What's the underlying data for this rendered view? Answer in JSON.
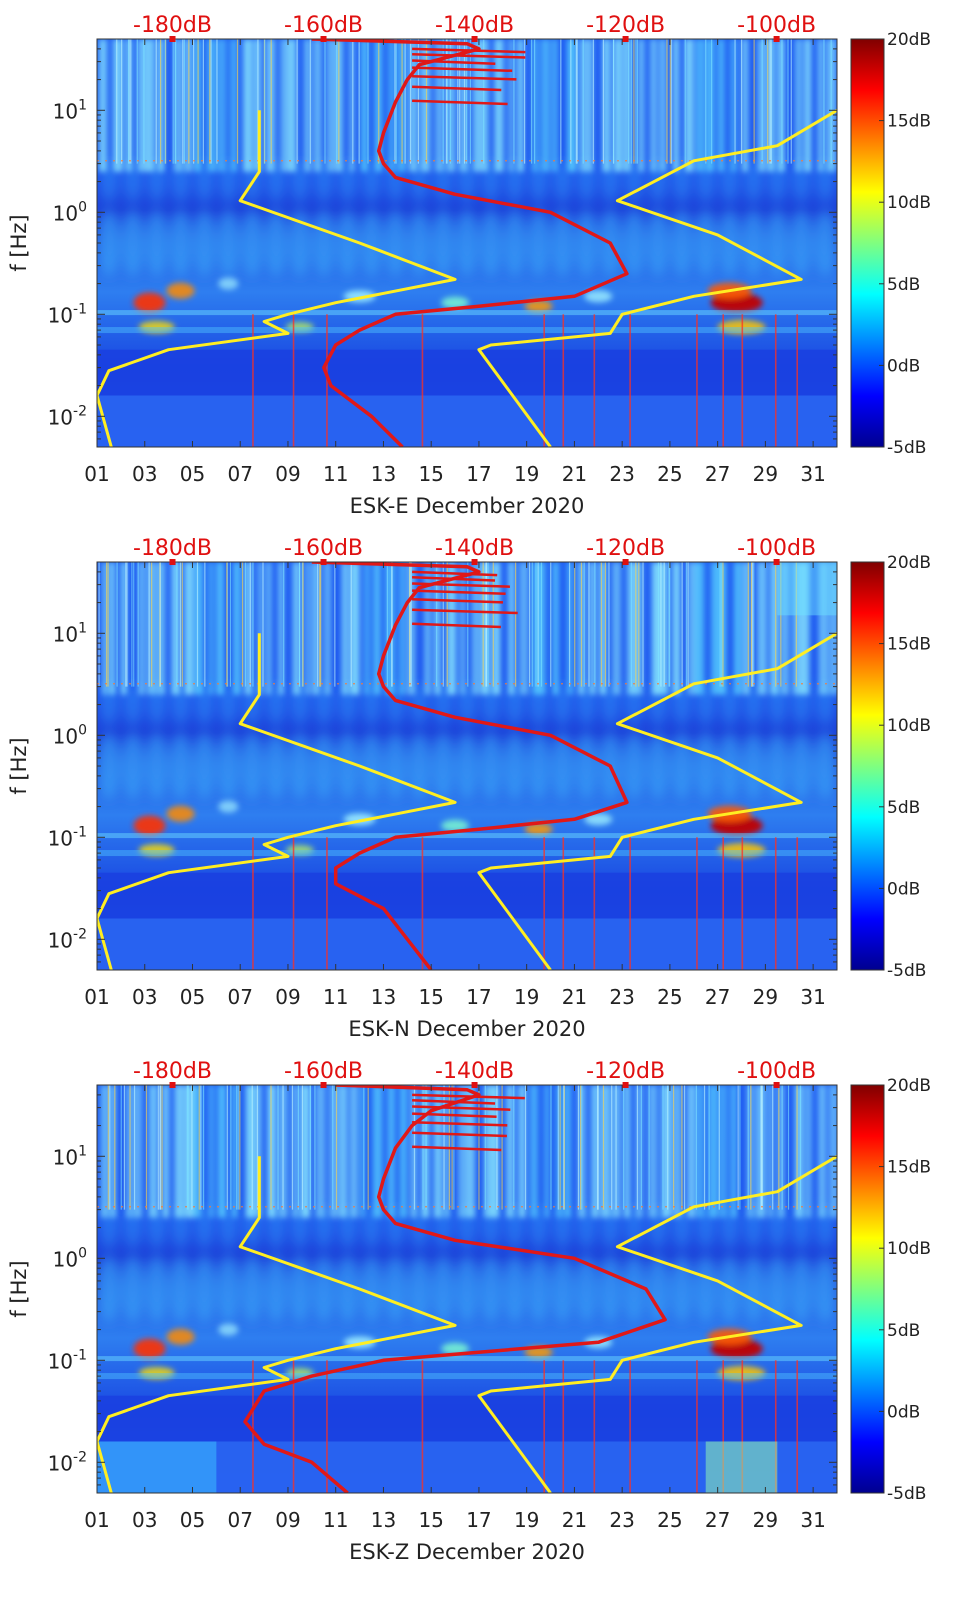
{
  "figure": {
    "panels": [
      {
        "id": "E",
        "xlabel": "ESK-E December 2020"
      },
      {
        "id": "N",
        "xlabel": "ESK-N December 2020"
      },
      {
        "id": "Z",
        "xlabel": "ESK-Z December 2020"
      }
    ],
    "ylabel": "f [Hz]",
    "top_axis_labels": [
      "-180dB",
      "-160dB",
      "-140dB",
      "-120dB",
      "-100dB"
    ],
    "y_tick_labels": [
      {
        "base": "10",
        "exp": "1",
        "value": 10
      },
      {
        "base": "10",
        "exp": "0",
        "value": 1
      },
      {
        "base": "10",
        "exp": "-1",
        "value": 0.1
      },
      {
        "base": "10",
        "exp": "-2",
        "value": 0.01
      }
    ],
    "x_tick_labels": [
      "01",
      "03",
      "05",
      "07",
      "09",
      "11",
      "13",
      "15",
      "17",
      "19",
      "21",
      "23",
      "25",
      "27",
      "29",
      "31"
    ],
    "colorbar_labels": [
      "20dB",
      "15dB",
      "10dB",
      "5dB",
      "0dB",
      "-5dB"
    ]
  },
  "chart_data": [
    {
      "type": "heatmap",
      "xlabel": "ESK-E December 2020",
      "ylabel": "f [Hz]",
      "xlim": [
        1,
        32
      ],
      "ylim": [
        0.005,
        50
      ],
      "y_scale": "log",
      "colorbar": {
        "range": [
          -5,
          20
        ],
        "unit": "dB",
        "colormap": "jet"
      },
      "top_axis": {
        "range": [
          -190,
          -92
        ],
        "ticks": [
          -180,
          -160,
          -140,
          -120,
          -100
        ],
        "unit": "dB"
      },
      "lines": [
        {
          "color": "#ffee22",
          "points": [
            [
              7.8,
              10
            ],
            [
              7.8,
              2.5
            ],
            [
              7,
              1.3
            ],
            [
              12,
              0.5
            ],
            [
              16,
              0.22
            ],
            [
              11,
              0.13
            ],
            [
              9,
              0.1
            ],
            [
              8,
              0.085
            ],
            [
              9,
              0.065
            ],
            [
              4,
              0.045
            ],
            [
              1.5,
              0.028
            ],
            [
              1,
              0.016
            ],
            [
              1.6,
              0.005
            ]
          ]
        },
        {
          "color": "#ffee22",
          "points": [
            [
              32,
              10
            ],
            [
              29.5,
              4.5
            ],
            [
              26,
              3.2
            ],
            [
              22.8,
              1.3
            ],
            [
              27,
              0.6
            ],
            [
              30.5,
              0.22
            ],
            [
              26,
              0.15
            ],
            [
              23,
              0.1
            ],
            [
              22.5,
              0.065
            ],
            [
              17.5,
              0.05
            ],
            [
              17,
              0.045
            ],
            [
              20,
              0.005
            ]
          ]
        },
        {
          "color": "#e01818",
          "points": [
            [
              10,
              50
            ],
            [
              16.5,
              45
            ],
            [
              17,
              40
            ],
            [
              14.5,
              28
            ],
            [
              14,
              20
            ],
            [
              13.5,
              12
            ],
            [
              13,
              6
            ],
            [
              12.8,
              4
            ],
            [
              13,
              3
            ],
            [
              13.5,
              2.2
            ],
            [
              16,
              1.5
            ],
            [
              20,
              1.0
            ],
            [
              22.5,
              0.5
            ],
            [
              23.2,
              0.25
            ],
            [
              21,
              0.15
            ],
            [
              17,
              0.12
            ],
            [
              13.5,
              0.1
            ],
            [
              12,
              0.07
            ],
            [
              11,
              0.05
            ],
            [
              10.5,
              0.03
            ],
            [
              10.8,
              0.02
            ],
            [
              12.5,
              0.01
            ],
            [
              13.8,
              0.005
            ]
          ]
        }
      ]
    },
    {
      "type": "heatmap",
      "xlabel": "ESK-N December 2020",
      "ylabel": "f [Hz]",
      "xlim": [
        1,
        32
      ],
      "ylim": [
        0.005,
        50
      ],
      "y_scale": "log",
      "colorbar": {
        "range": [
          -5,
          20
        ],
        "unit": "dB",
        "colormap": "jet"
      },
      "top_axis": {
        "range": [
          -190,
          -92
        ],
        "ticks": [
          -180,
          -160,
          -140,
          -120,
          -100
        ],
        "unit": "dB"
      },
      "lines": [
        {
          "color": "#ffee22",
          "points": [
            [
              7.8,
              10
            ],
            [
              7.8,
              2.5
            ],
            [
              7,
              1.3
            ],
            [
              12,
              0.5
            ],
            [
              16,
              0.22
            ],
            [
              11,
              0.13
            ],
            [
              9,
              0.1
            ],
            [
              8,
              0.085
            ],
            [
              9,
              0.065
            ],
            [
              4,
              0.045
            ],
            [
              1.5,
              0.028
            ],
            [
              1,
              0.016
            ],
            [
              1.6,
              0.005
            ]
          ]
        },
        {
          "color": "#ffee22",
          "points": [
            [
              32,
              10
            ],
            [
              29.5,
              4.5
            ],
            [
              26,
              3.2
            ],
            [
              22.8,
              1.3
            ],
            [
              27,
              0.6
            ],
            [
              30.5,
              0.22
            ],
            [
              26,
              0.15
            ],
            [
              23,
              0.1
            ],
            [
              22.5,
              0.065
            ],
            [
              17.5,
              0.05
            ],
            [
              17,
              0.045
            ],
            [
              20,
              0.005
            ]
          ]
        },
        {
          "color": "#e01818",
          "points": [
            [
              10,
              50
            ],
            [
              16.5,
              45
            ],
            [
              17,
              40
            ],
            [
              14.5,
              28
            ],
            [
              14,
              20
            ],
            [
              13.5,
              12
            ],
            [
              13,
              6
            ],
            [
              12.8,
              4
            ],
            [
              13,
              3
            ],
            [
              13.5,
              2.2
            ],
            [
              16,
              1.5
            ],
            [
              20,
              1.0
            ],
            [
              22.5,
              0.5
            ],
            [
              23.2,
              0.22
            ],
            [
              21,
              0.15
            ],
            [
              17,
              0.12
            ],
            [
              13.5,
              0.1
            ],
            [
              12,
              0.07
            ],
            [
              11,
              0.05
            ],
            [
              11,
              0.035
            ],
            [
              13,
              0.02
            ],
            [
              15,
              0.005
            ]
          ]
        }
      ]
    },
    {
      "type": "heatmap",
      "xlabel": "ESK-Z December 2020",
      "ylabel": "f [Hz]",
      "xlim": [
        1,
        32
      ],
      "ylim": [
        0.005,
        50
      ],
      "y_scale": "log",
      "colorbar": {
        "range": [
          -5,
          20
        ],
        "unit": "dB",
        "colormap": "jet"
      },
      "top_axis": {
        "range": [
          -190,
          -92
        ],
        "ticks": [
          -180,
          -160,
          -140,
          -120,
          -100
        ],
        "unit": "dB"
      },
      "lines": [
        {
          "color": "#ffee22",
          "points": [
            [
              7.8,
              10
            ],
            [
              7.8,
              2.5
            ],
            [
              7,
              1.3
            ],
            [
              12,
              0.5
            ],
            [
              16,
              0.22
            ],
            [
              11,
              0.13
            ],
            [
              9,
              0.1
            ],
            [
              8,
              0.085
            ],
            [
              9,
              0.065
            ],
            [
              4,
              0.045
            ],
            [
              1.5,
              0.028
            ],
            [
              1,
              0.016
            ],
            [
              1.6,
              0.005
            ]
          ]
        },
        {
          "color": "#ffee22",
          "points": [
            [
              32,
              10
            ],
            [
              29.5,
              4.5
            ],
            [
              26,
              3.2
            ],
            [
              22.8,
              1.3
            ],
            [
              27,
              0.6
            ],
            [
              30.5,
              0.22
            ],
            [
              26,
              0.15
            ],
            [
              23,
              0.1
            ],
            [
              22.5,
              0.065
            ],
            [
              17.5,
              0.05
            ],
            [
              17,
              0.045
            ],
            [
              20,
              0.005
            ]
          ]
        },
        {
          "color": "#e01818",
          "points": [
            [
              11,
              50
            ],
            [
              16.5,
              45
            ],
            [
              17,
              40
            ],
            [
              15,
              28
            ],
            [
              14.2,
              20
            ],
            [
              13.5,
              12
            ],
            [
              13,
              6
            ],
            [
              12.8,
              4
            ],
            [
              13,
              3
            ],
            [
              13.5,
              2.2
            ],
            [
              16,
              1.5
            ],
            [
              21,
              1.0
            ],
            [
              24,
              0.5
            ],
            [
              24.8,
              0.25
            ],
            [
              22,
              0.15
            ],
            [
              17,
              0.12
            ],
            [
              13,
              0.1
            ],
            [
              10,
              0.07
            ],
            [
              8,
              0.05
            ],
            [
              7.2,
              0.025
            ],
            [
              8,
              0.015
            ],
            [
              10,
              0.01
            ],
            [
              11.5,
              0.005
            ]
          ]
        }
      ]
    }
  ]
}
